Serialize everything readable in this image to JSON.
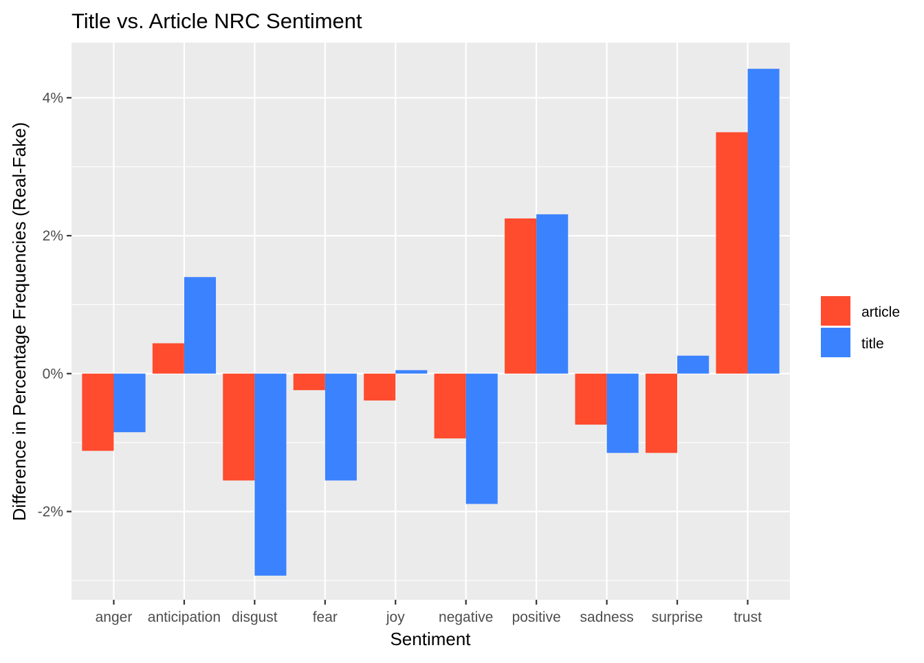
{
  "chart_data": {
    "type": "bar",
    "title": "Title vs. Article NRC Sentiment",
    "xlabel": "Sentiment",
    "ylabel": "Difference in Percentage Frequencies (Real-Fake)",
    "categories": [
      "anger",
      "anticipation",
      "disgust",
      "fear",
      "joy",
      "negative",
      "positive",
      "sadness",
      "surprise",
      "trust"
    ],
    "series": [
      {
        "name": "article",
        "color": "#FF4B2E",
        "values": [
          -1.12,
          0.44,
          -1.55,
          -0.24,
          -0.39,
          -0.94,
          2.25,
          -0.74,
          -1.15,
          3.5
        ]
      },
      {
        "name": "title",
        "color": "#3B82FF",
        "values": [
          -0.85,
          1.4,
          -2.93,
          -1.55,
          0.05,
          -1.89,
          2.31,
          -1.15,
          0.26,
          4.42
        ]
      }
    ],
    "ylim": [
      -3.28,
      4.8
    ],
    "yticks": [
      -2,
      0,
      2,
      4
    ],
    "ytick_labels": [
      "-2%",
      "0%",
      "2%",
      "4%"
    ],
    "grid": true,
    "legend_position": "right",
    "panel_color": "#EBEBEB",
    "grid_color": "#FFFFFF"
  }
}
